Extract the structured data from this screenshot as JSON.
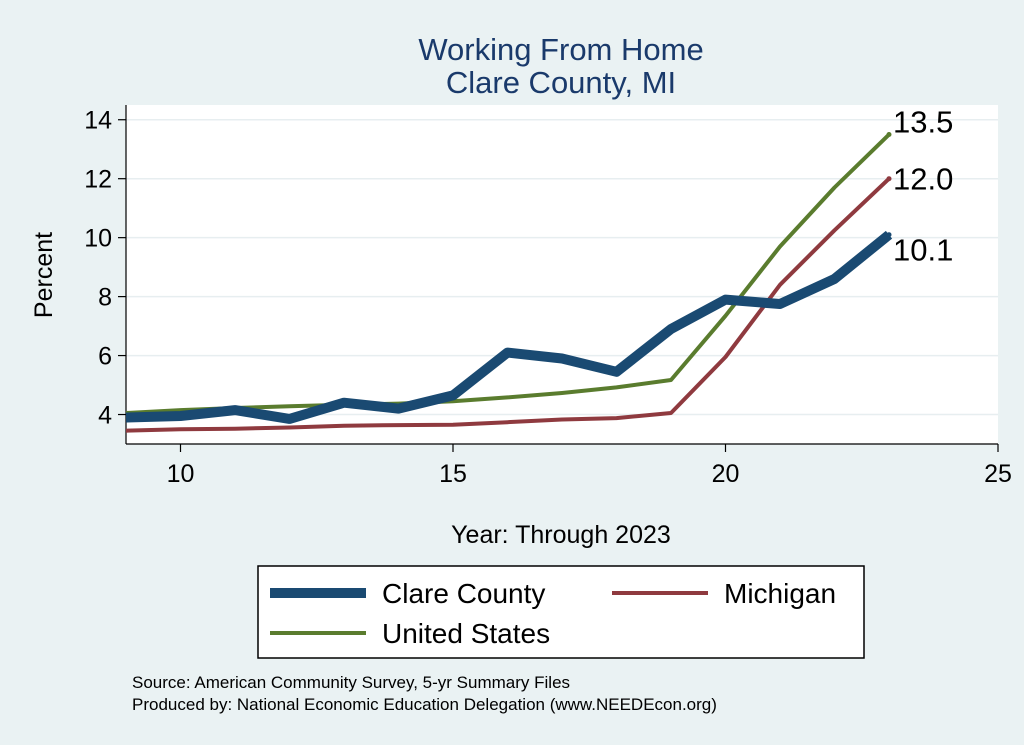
{
  "chart_data": {
    "type": "line",
    "title": [
      "Working From Home",
      "Clare County, MI"
    ],
    "xlabel": "Year: Through 2023",
    "ylabel": "Percent",
    "xlim": [
      9,
      25
    ],
    "ylim": [
      3,
      14.5
    ],
    "xticks": [
      10,
      15,
      20,
      25
    ],
    "yticks": [
      4,
      6,
      8,
      10,
      12,
      14
    ],
    "grid": true,
    "series": [
      {
        "name": "Clare County",
        "color": "#1a4a72",
        "x": [
          9,
          10,
          11,
          12,
          13,
          14,
          15,
          16,
          17,
          18,
          19,
          20,
          21,
          22,
          23
        ],
        "values": [
          3.9,
          3.95,
          4.15,
          3.85,
          4.4,
          4.2,
          4.65,
          6.1,
          5.9,
          5.45,
          6.9,
          7.9,
          7.75,
          8.6,
          10.1
        ],
        "end_label": "10.1"
      },
      {
        "name": "Michigan",
        "color": "#8f3a3f",
        "x": [
          9,
          10,
          11,
          12,
          13,
          14,
          15,
          16,
          17,
          18,
          19,
          20,
          21,
          22,
          23
        ],
        "values": [
          3.45,
          3.5,
          3.52,
          3.56,
          3.62,
          3.64,
          3.65,
          3.74,
          3.83,
          3.88,
          4.05,
          5.95,
          8.4,
          10.25,
          12.0
        ],
        "end_label": "12.0"
      },
      {
        "name": "United States",
        "color": "#5a7c2e",
        "x": [
          9,
          10,
          11,
          12,
          13,
          14,
          15,
          16,
          17,
          18,
          19,
          20,
          21,
          22,
          23
        ],
        "values": [
          4.05,
          4.15,
          4.22,
          4.28,
          4.33,
          4.37,
          4.45,
          4.58,
          4.73,
          4.92,
          5.17,
          7.35,
          9.7,
          11.7,
          13.5
        ],
        "end_label": "13.5"
      }
    ],
    "legend_position": "bottom"
  },
  "source": {
    "line1": "Source: American Community Survey, 5-yr Summary Files",
    "line2": "Produced by: National Economic Education Delegation (www.NEEDEcon.org)"
  }
}
